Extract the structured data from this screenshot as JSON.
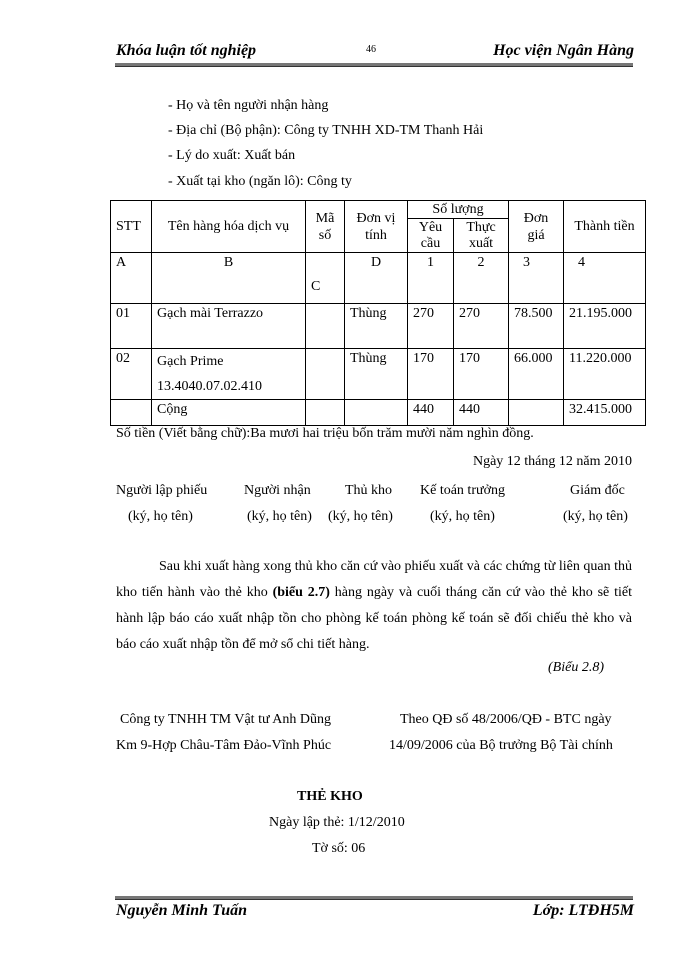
{
  "header": {
    "left": "Khóa luận tốt nghiệp",
    "page_number": "46",
    "right": "Học viện Ngân Hàng"
  },
  "info_lines": [
    "- Họ và tên người nhận hàng",
    "- Địa chỉ (Bộ phận): Công ty TNHH XD-TM Thanh Hải",
    "- Lý do xuất: Xuất bán",
    "- Xuất tại kho (ngăn lô): Công ty"
  ],
  "table": {
    "headers": {
      "stt": "STT",
      "name": "Tên hàng hóa dịch vụ",
      "code": "Mã số",
      "unit": "Đơn vị tính",
      "qty": "Số lượng",
      "qty_req": "Yêu cầu",
      "qty_actual": "Thực xuất",
      "price": "Đơn giá",
      "amount": "Thành tiền"
    },
    "index_row": [
      "A",
      "B",
      "C",
      "D",
      "1",
      "2",
      "3",
      "4"
    ],
    "rows": [
      {
        "stt": "01",
        "name": "Gạch mài Terrazzo",
        "name2": "",
        "code": "",
        "unit": "Thùng",
        "qty_req": "270",
        "qty_actual": "270",
        "price": "78.500",
        "amount": "21.195.000"
      },
      {
        "stt": "02",
        "name": "Gạch Prime",
        "name2": "13.4040.07.02.410",
        "code": "",
        "unit": "Thùng",
        "qty_req": "170",
        "qty_actual": "170",
        "price": "66.000",
        "amount": "11.220.000"
      }
    ],
    "total": {
      "label": "Cộng",
      "qty_req": "440",
      "qty_actual": "440",
      "amount": "32.415.000"
    }
  },
  "amount_in_words": "Số tiền (Viết bằng chữ):Ba mươi hai triệu bốn trăm mười năm nghìn đồng.",
  "date_line": "Ngày  12 tháng 12 năm 2010",
  "signatures": [
    {
      "role": "Người lập phiếu",
      "note": "(ký, họ tên)"
    },
    {
      "role": "Người nhận",
      "note": "(ký, họ tên)"
    },
    {
      "role": "Thủ kho",
      "note": "(ký, họ tên)"
    },
    {
      "role": "Kế toán trưởng",
      "note": "(ký, họ tên)"
    },
    {
      "role": "Giám đốc",
      "note": "(ký, họ tên)"
    }
  ],
  "paragraph": {
    "part1": "Sau khi xuất hàng xong thủ kho căn cứ vào phiếu xuất và các chứng từ liên quan thủ kho tiến hành vào thẻ kho ",
    "bold": "(biểu 2.7)",
    "part2": " hàng ngày và cuối tháng căn cứ vào thẻ kho sẽ tiết hành lập báo cáo xuất nhập tồn  cho phòng kế toán phòng kế toán sẽ đối chiếu thẻ kho và báo cáo xuất nhập tồn để mở sổ chi tiết hàng."
  },
  "caption": "(Biểu 2.8)",
  "company": {
    "line1": "Công ty TNHH TM Vật tư Anh Dũng",
    "line2": "Km 9-Hợp Châu-Tâm Đảo-Vĩnh Phúc"
  },
  "regulation": {
    "line1": "Theo QĐ số 48/2006/QĐ - BTC ngày",
    "line2": "14/09/2006 của Bộ trưởng Bộ Tài chính"
  },
  "card": {
    "title": "THẺ KHO",
    "date": "Ngày lập thẻ: 1/12/2010",
    "sheet": "Tờ số:   06"
  },
  "footer": {
    "left": "Nguyễn Minh Tuấn",
    "right": "Lớp: LTĐH5M"
  }
}
